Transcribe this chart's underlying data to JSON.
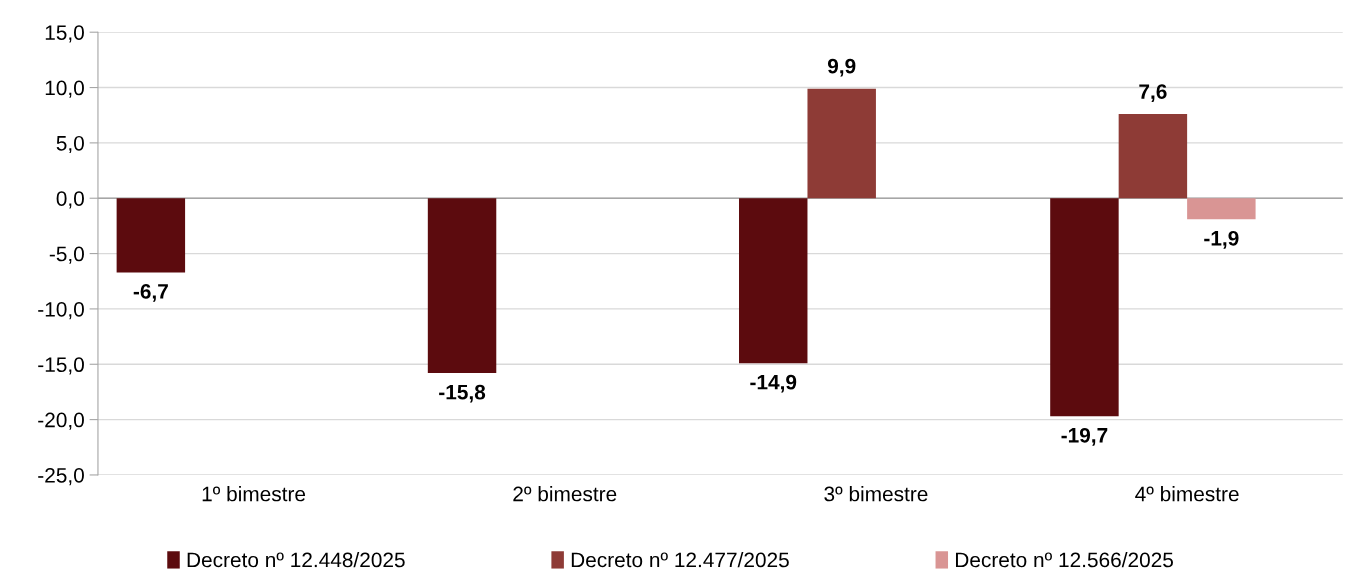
{
  "chart_data": {
    "type": "bar",
    "categories": [
      "1º bimestre",
      "2º bimestre",
      "3º bimestre",
      "4º bimestre"
    ],
    "series": [
      {
        "name": "Decreto nº 12.448/2025",
        "color": "#5c0b0e",
        "values": [
          -6.7,
          -15.8,
          -14.9,
          -19.7
        ],
        "value_labels": [
          "-6,7",
          "-15,8",
          "-14,9",
          "-19,7"
        ]
      },
      {
        "name": "Decreto nº 12.477/2025",
        "color": "#8e3b36",
        "values": [
          null,
          null,
          9.9,
          7.6
        ],
        "value_labels": [
          null,
          null,
          "9,9",
          "7,6"
        ]
      },
      {
        "name": "Decreto nº 12.566/2025",
        "color": "#d99594",
        "values": [
          null,
          null,
          null,
          -1.9
        ],
        "value_labels": [
          null,
          null,
          null,
          "-1,9"
        ]
      }
    ],
    "ylim": [
      -25,
      15
    ],
    "yticks": [
      {
        "value": -25,
        "label": "-25,0"
      },
      {
        "value": -20,
        "label": "-20,0"
      },
      {
        "value": -15,
        "label": "-15,0"
      },
      {
        "value": -10,
        "label": "-10,0"
      },
      {
        "value": -5,
        "label": "-5,0"
      },
      {
        "value": 0,
        "label": "0,0"
      },
      {
        "value": 5,
        "label": "5,0"
      },
      {
        "value": 10,
        "label": "10,0"
      },
      {
        "value": 15,
        "label": "15,0"
      }
    ],
    "grid": "y",
    "legend": "bottom"
  }
}
